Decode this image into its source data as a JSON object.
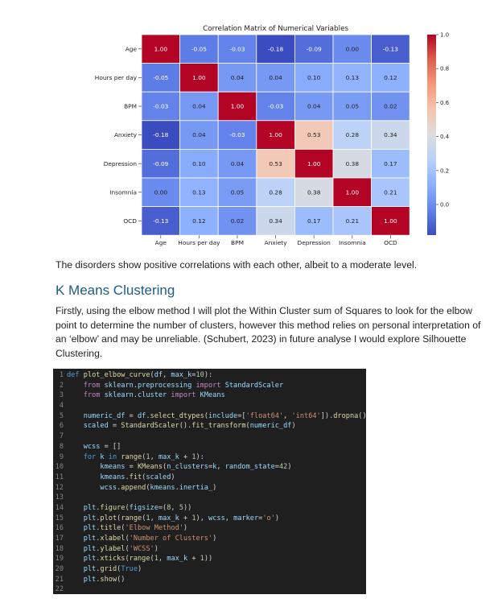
{
  "chart_data": {
    "type": "heatmap",
    "title": "Correlation Matrix of Numerical Variables",
    "xlabel": "",
    "ylabel": "",
    "categories": [
      "Age",
      "Hours per day",
      "BPM",
      "Anxiety",
      "Depression",
      "Insomnia",
      "OCD"
    ],
    "matrix": [
      [
        1.0,
        -0.05,
        -0.03,
        -0.18,
        -0.09,
        0.0,
        -0.13
      ],
      [
        -0.05,
        1.0,
        0.04,
        0.04,
        0.1,
        0.13,
        0.12
      ],
      [
        -0.03,
        0.04,
        1.0,
        -0.03,
        0.04,
        0.05,
        0.02
      ],
      [
        -0.18,
        0.04,
        -0.03,
        1.0,
        0.53,
        0.28,
        0.34
      ],
      [
        -0.09,
        0.1,
        0.04,
        0.53,
        1.0,
        0.38,
        0.17
      ],
      [
        0.0,
        0.13,
        0.05,
        0.28,
        0.38,
        1.0,
        0.21
      ],
      [
        -0.13,
        0.12,
        0.02,
        0.34,
        0.17,
        0.21,
        1.0
      ]
    ],
    "colorbar": {
      "range": [
        -0.18,
        1.0
      ],
      "ticks": [
        "1.0",
        "0.8",
        "0.6",
        "0.4",
        "0.2",
        "0.0"
      ],
      "colormap": "coolwarm"
    }
  },
  "text": {
    "paragraph1": "The disorders show positive correlations with each other, albeit to a moderate level.",
    "heading": "K Means Clustering",
    "paragraph2": "Firstly, using the elbow method I will plot the Within Cluster sum of Squares to look for the elbow point to determine the number of clusters, however this method relies on personal interpretation of an ‘elbow’ and may be unreliable. (Schubert, 2023) in future analyse I would explore Silhouette Clustering."
  },
  "code": {
    "lines": [
      "def plot_elbow_curve(df, max_k=10):",
      "    from sklearn.preprocessing import StandardScaler",
      "    from sklearn.cluster import KMeans",
      "",
      "    numeric_df = df.select_dtypes(include=['float64', 'int64']).dropna()",
      "    scaled = StandardScaler().fit_transform(numeric_df)",
      "",
      "    wcss = []",
      "    for k in range(1, max_k + 1):",
      "        kmeans = KMeans(n_clusters=k, random_state=42)",
      "        kmeans.fit(scaled)",
      "        wcss.append(kmeans.inertia_)",
      "",
      "    plt.figure(figsize=(8, 5))",
      "    plt.plot(range(1, max_k + 1), wcss, marker='o')",
      "    plt.title('Elbow Method')",
      "    plt.xlabel('Number of Clusters')",
      "    plt.ylabel('WCSS')",
      "    plt.xticks(range(1, max_k + 1))",
      "    plt.grid(True)",
      "    plt.show()",
      ""
    ]
  }
}
